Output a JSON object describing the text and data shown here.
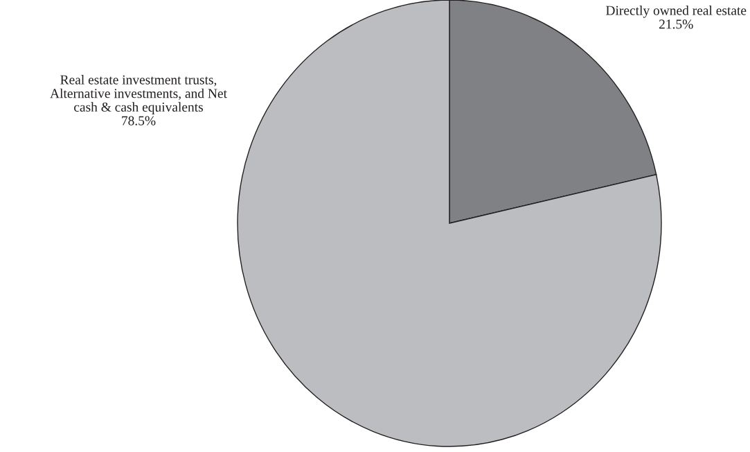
{
  "chart_data": {
    "type": "pie",
    "categories": [
      "Directly owned real estate",
      "Real estate investment trusts,\nAlternative investments, and Net\ncash & cash equivalents"
    ],
    "values": [
      21.5,
      78.5
    ],
    "colors": [
      "#808185",
      "#bcbdc1"
    ],
    "value_labels": [
      "21.5%",
      "78.5%"
    ]
  }
}
